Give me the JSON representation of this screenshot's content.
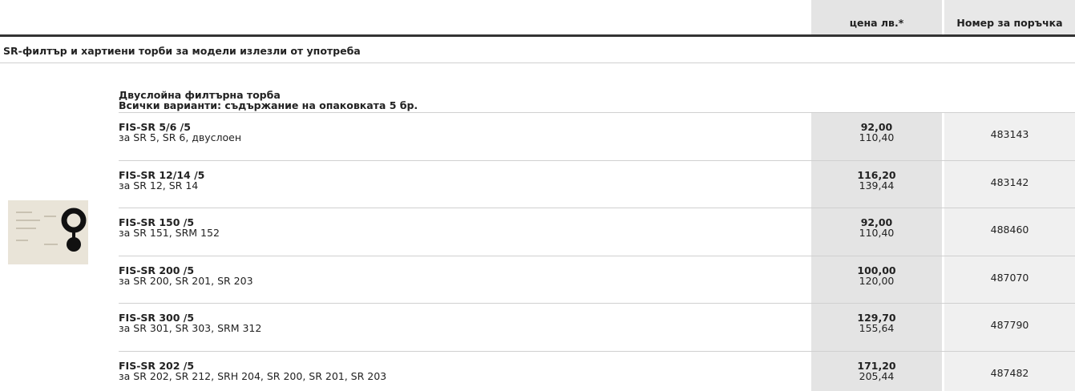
{
  "header": {
    "price": "цена лв.*",
    "order": "Номер за поръчка"
  },
  "section": "SR-филтър и хартиени торби за модели излезли от употреба",
  "group": {
    "title": "Двуслойна филтърна торба",
    "subtitle": "Всички варианти: съдържание на опаковката 5 бр."
  },
  "rows": [
    {
      "name": "FIS-SR 5/6 /5",
      "desc": "за SR 5, SR 6, двуслоен",
      "price": "92,00",
      "price_vat": "110,40",
      "order": "483143"
    },
    {
      "name": "FIS-SR 12/14 /5",
      "desc": "за SR 12, SR 14",
      "price": "116,20",
      "price_vat": "139,44",
      "order": "483142"
    },
    {
      "name": "FIS-SR 150 /5",
      "desc": "за SR 151, SRM 152",
      "price": "92,00",
      "price_vat": "110,40",
      "order": "488460"
    },
    {
      "name": "FIS-SR 200 /5",
      "desc": "за SR 200, SR 201, SR 203",
      "price": "100,00",
      "price_vat": "120,00",
      "order": "487070"
    },
    {
      "name": "FIS-SR 300 /5",
      "desc": "за SR 301, SR 303, SRM 312",
      "price": "129,70",
      "price_vat": "155,64",
      "order": "487790"
    },
    {
      "name": "FIS-SR 202 /5",
      "desc": "за SR 202, SR 212, SRH 204, SR 200, SR 201, SR 203",
      "price": "171,20",
      "price_vat": "205,44",
      "order": "487482"
    }
  ]
}
